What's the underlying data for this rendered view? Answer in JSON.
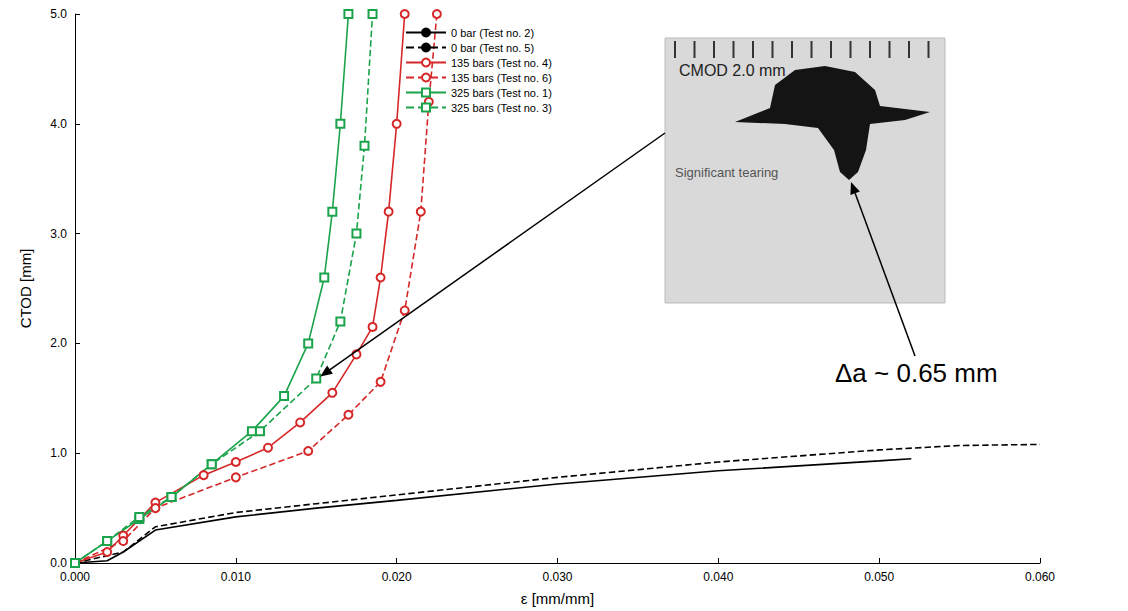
{
  "chart_data": {
    "type": "line",
    "xlabel": "ε [mm/mm]",
    "ylabel": "CTOD [mm]",
    "xlim": [
      0,
      0.06
    ],
    "ylim": [
      0,
      5
    ],
    "xticks": [
      {
        "value": 0,
        "label": "0.000"
      },
      {
        "value": 0.01,
        "label": "0.010"
      },
      {
        "value": 0.02,
        "label": "0.020"
      },
      {
        "value": 0.03,
        "label": "0.030"
      },
      {
        "value": 0.04,
        "label": "0.040"
      },
      {
        "value": 0.05,
        "label": "0.050"
      },
      {
        "value": 0.06,
        "label": "0.060"
      }
    ],
    "yticks": [
      {
        "value": 0,
        "label": "0.0"
      },
      {
        "value": 1,
        "label": "1.0"
      },
      {
        "value": 2,
        "label": "2.0"
      },
      {
        "value": 3,
        "label": "3.0"
      },
      {
        "value": 4,
        "label": "4.0"
      },
      {
        "value": 5,
        "label": "5.0"
      }
    ],
    "grid": false,
    "legend": "upper center",
    "series": [
      {
        "name": "0 bar (Test no. 2)",
        "color": "#000000",
        "line_style": "solid",
        "marker": "none",
        "x": [
          0,
          0.002,
          0.003,
          0.005,
          0.01,
          0.015,
          0.02,
          0.03,
          0.04,
          0.05,
          0.052
        ],
        "values": [
          0,
          0.02,
          0.1,
          0.3,
          0.42,
          0.5,
          0.57,
          0.72,
          0.84,
          0.93,
          0.95
        ]
      },
      {
        "name": "0 bar (Test no. 5)",
        "color": "#000000",
        "line_style": "dashed",
        "marker": "none",
        "x": [
          0,
          0.003,
          0.005,
          0.01,
          0.015,
          0.02,
          0.03,
          0.04,
          0.05,
          0.055,
          0.06
        ],
        "values": [
          0,
          0.1,
          0.33,
          0.46,
          0.54,
          0.62,
          0.78,
          0.92,
          1.03,
          1.07,
          1.08
        ]
      },
      {
        "name": "135 bars (Test no. 4)",
        "color": "#d62728",
        "line_style": "solid",
        "marker": "circle",
        "x": [
          0,
          0.002,
          0.003,
          0.005,
          0.008,
          0.01,
          0.012,
          0.014,
          0.016,
          0.0175,
          0.0185,
          0.019,
          0.0195,
          0.02,
          0.0205
        ],
        "values": [
          0,
          0.1,
          0.25,
          0.55,
          0.8,
          0.92,
          1.05,
          1.28,
          1.55,
          1.9,
          2.15,
          2.6,
          3.2,
          4.0,
          5.0
        ]
      },
      {
        "name": "135 bars (Test no. 6)",
        "color": "#d62728",
        "line_style": "dashed",
        "marker": "circle",
        "x": [
          0,
          0.003,
          0.005,
          0.01,
          0.0145,
          0.017,
          0.019,
          0.0205,
          0.0215,
          0.022,
          0.0225
        ],
        "values": [
          0,
          0.2,
          0.5,
          0.78,
          1.02,
          1.35,
          1.65,
          2.3,
          3.2,
          4.2,
          5.0
        ]
      },
      {
        "name": "325 bars (Test no. 1)",
        "color": "#1aa34a",
        "line_style": "solid",
        "marker": "square",
        "x": [
          0,
          0.002,
          0.004,
          0.006,
          0.0085,
          0.011,
          0.013,
          0.0145,
          0.0155,
          0.016,
          0.0165,
          0.017
        ],
        "values": [
          0,
          0.2,
          0.4,
          0.6,
          0.9,
          1.2,
          1.52,
          2.0,
          2.6,
          3.2,
          4.0,
          5.0
        ]
      },
      {
        "name": "325 bars (Test no. 3)",
        "color": "#1aa34a",
        "line_style": "dashed",
        "marker": "square",
        "x": [
          0,
          0.002,
          0.004,
          0.006,
          0.0085,
          0.0115,
          0.015,
          0.0165,
          0.0175,
          0.018,
          0.0185
        ],
        "values": [
          0,
          0.2,
          0.42,
          0.6,
          0.9,
          1.2,
          1.68,
          2.2,
          3.0,
          3.8,
          5.0
        ]
      }
    ],
    "inset": {
      "title": "CMOD 2.0 mm",
      "note": "Significant tearing",
      "arrow_to": {
        "x": 0.015,
        "y": 1.68
      }
    },
    "annotation": "Δa ~ 0.65 mm"
  }
}
